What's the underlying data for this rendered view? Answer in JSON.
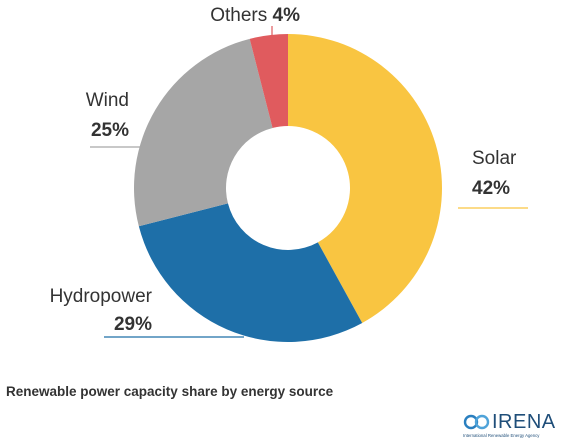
{
  "chart_data": {
    "type": "pie",
    "variant": "donut",
    "title": "",
    "categories": [
      "Solar",
      "Hydropower",
      "Wind",
      "Others"
    ],
    "values": [
      42,
      29,
      25,
      4
    ],
    "labels": [
      "42%",
      "29%",
      "25%",
      "4%"
    ],
    "colors": [
      "#f9c541",
      "#1e6fa8",
      "#a6a6a6",
      "#e05b5e"
    ],
    "legend": "none",
    "start": "top",
    "direction": "clockwise"
  },
  "caption": "Renewable power capacity share by energy source",
  "logo": {
    "name": "IRENA",
    "tagline": "International Renewable Energy Agency",
    "color": "#1f4e79"
  }
}
